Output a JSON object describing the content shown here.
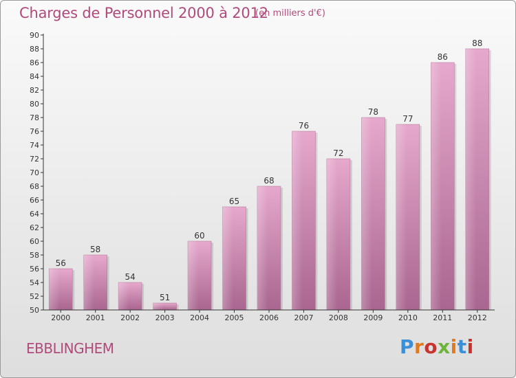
{
  "header": {
    "title": "Charges de Personnel 2000 à 2012",
    "subtitle": "(en milliers d'€)"
  },
  "footer": {
    "city": "EBBLINGHEM",
    "logo_text": "Proxiti",
    "logo_colors": [
      "#3a8fd6",
      "#e07a1f",
      "#c9332e",
      "#6fb43a",
      "#e07a1f",
      "#3a8fd6",
      "#c9332e"
    ]
  },
  "colors": {
    "bar_light": "#e6a8cc",
    "bar_dark": "#a96690",
    "text": "#b04a7b",
    "axis": "#333333"
  },
  "chart_data": {
    "type": "bar",
    "title": "Charges de Personnel 2000 à 2012",
    "subtitle": "(en milliers d'€)",
    "categories": [
      "2000",
      "2001",
      "2002",
      "2003",
      "2004",
      "2005",
      "2006",
      "2007",
      "2008",
      "2009",
      "2010",
      "2011",
      "2012"
    ],
    "values": [
      56,
      58,
      54,
      51,
      60,
      65,
      68,
      76,
      72,
      78,
      77,
      86,
      88
    ],
    "ylim": [
      50,
      90
    ],
    "yticks": [
      50,
      52,
      54,
      56,
      58,
      60,
      62,
      64,
      66,
      68,
      70,
      72,
      74,
      76,
      78,
      80,
      82,
      84,
      86,
      88,
      90
    ],
    "grid": false,
    "data_labels": true,
    "legend": "none"
  }
}
